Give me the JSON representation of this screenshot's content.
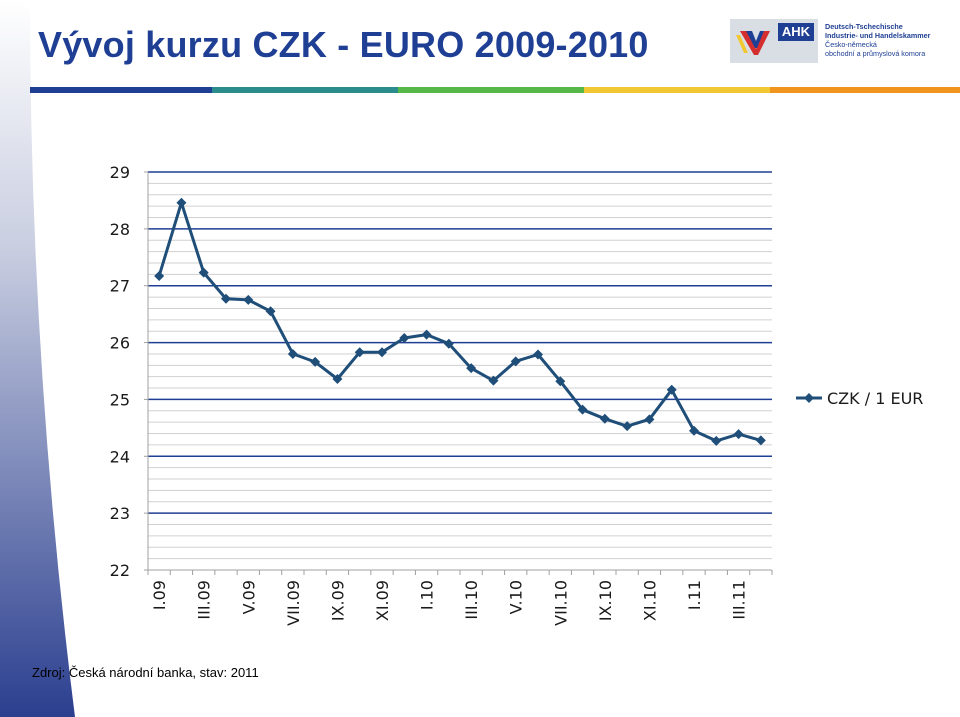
{
  "slide": {
    "title": "Vývoj kurzu CZK - EURO 2009-2010",
    "source": "Zdroj: Česká národní banka, stav: 2011",
    "stripe_colors": [
      "#1f3f94",
      "#2a8c8c",
      "#55b848",
      "#f2c832",
      "#f0941e"
    ],
    "title_color": "#1f3f94"
  },
  "logo": {
    "badge": "AHK",
    "lines": [
      "Deutsch-Tschechische",
      "Industrie- und Handelskammer",
      "Česko-německá",
      "obchodní a průmyslová komora"
    ]
  },
  "chart_data": {
    "type": "line",
    "title": "",
    "xlabel": "",
    "ylabel": "",
    "ylim": [
      22,
      29
    ],
    "yticks": [
      22,
      23,
      24,
      25,
      26,
      27,
      28,
      29
    ],
    "grid": true,
    "legend_position": "right",
    "tick_labels": [
      "I.09",
      "III.09",
      "V.09",
      "VII.09",
      "IX.09",
      "XI.09",
      "I.10",
      "III.10",
      "V.10",
      "VII.10",
      "IX.10",
      "XI.10",
      "I.11",
      "III.11"
    ],
    "series": [
      {
        "name": "CZK / 1 EUR",
        "color": "#1f4e79",
        "values": [
          27.17,
          28.46,
          27.23,
          26.77,
          26.75,
          26.55,
          25.8,
          25.66,
          25.36,
          25.83,
          25.83,
          26.08,
          26.14,
          25.98,
          25.55,
          25.33,
          25.67,
          25.79,
          25.32,
          24.82,
          24.66,
          24.53,
          24.65,
          25.17,
          24.45,
          24.27,
          24.39,
          24.28
        ]
      }
    ]
  }
}
